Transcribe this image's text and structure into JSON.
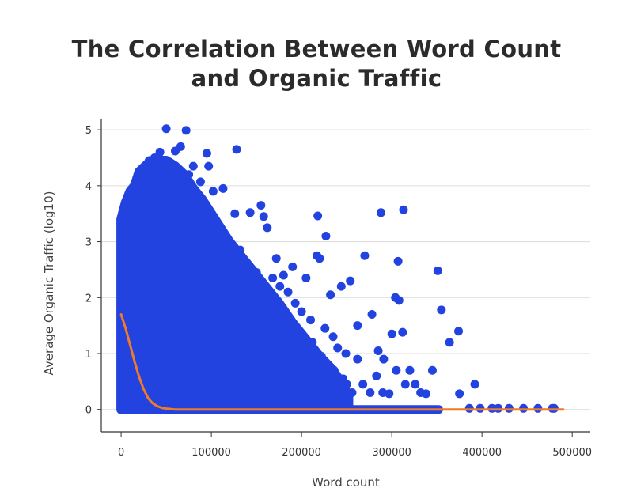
{
  "chart_data": {
    "type": "scatter",
    "title_lines": [
      "The Correlation Between Word Count",
      "and Organic Traffic"
    ],
    "xlabel": "Word count",
    "ylabel": "Average Organic Traffic (log10)",
    "xlim": [
      -22000,
      520000
    ],
    "ylim": [
      -0.4,
      5.2
    ],
    "xticks": [
      0,
      100000,
      200000,
      300000,
      400000,
      500000
    ],
    "yticks": [
      0,
      1,
      2,
      3,
      4,
      5
    ],
    "grid": "horizontal",
    "colors": {
      "points": "#2343e0",
      "trend": "#f07a26",
      "grid": "#dcdcdc",
      "axis": "#333333"
    },
    "series": [
      {
        "type": "scatter",
        "points": [
          [
            50000,
            5.02
          ],
          [
            72000,
            4.99
          ],
          [
            66000,
            4.7
          ],
          [
            60000,
            4.62
          ],
          [
            43000,
            4.6
          ],
          [
            37000,
            4.5
          ],
          [
            31000,
            4.45
          ],
          [
            80000,
            4.35
          ],
          [
            95000,
            4.58
          ],
          [
            97000,
            4.35
          ],
          [
            128000,
            4.65
          ],
          [
            75000,
            4.2
          ],
          [
            88000,
            4.07
          ],
          [
            102000,
            3.9
          ],
          [
            113000,
            3.95
          ],
          [
            82000,
            3.65
          ],
          [
            126000,
            3.5
          ],
          [
            143000,
            3.52
          ],
          [
            155000,
            3.65
          ],
          [
            158000,
            3.45
          ],
          [
            162000,
            3.25
          ],
          [
            218000,
            3.46
          ],
          [
            227000,
            3.1
          ],
          [
            217000,
            2.75
          ],
          [
            220000,
            2.7
          ],
          [
            270000,
            2.75
          ],
          [
            288000,
            3.52
          ],
          [
            313000,
            3.57
          ],
          [
            307000,
            2.65
          ],
          [
            351000,
            2.48
          ],
          [
            254000,
            2.3
          ],
          [
            244000,
            2.2
          ],
          [
            304000,
            2.0
          ],
          [
            308000,
            1.95
          ],
          [
            355000,
            1.78
          ],
          [
            374000,
            1.4
          ],
          [
            364000,
            1.2
          ],
          [
            312000,
            1.38
          ],
          [
            300000,
            1.35
          ],
          [
            278000,
            1.7
          ],
          [
            262000,
            1.5
          ],
          [
            249000,
            1.0
          ],
          [
            262000,
            0.9
          ],
          [
            291000,
            0.9
          ],
          [
            305000,
            0.7
          ],
          [
            345000,
            0.7
          ],
          [
            338000,
            0.28
          ],
          [
            315000,
            0.45
          ],
          [
            297000,
            0.28
          ],
          [
            392000,
            0.45
          ],
          [
            375000,
            0.28
          ],
          [
            386000,
            0.02
          ],
          [
            398000,
            0.02
          ],
          [
            411000,
            0.02
          ],
          [
            418000,
            0.02
          ],
          [
            430000,
            0.02
          ],
          [
            446000,
            0.02
          ],
          [
            462000,
            0.02
          ],
          [
            478000,
            0.02
          ],
          [
            480000,
            0.02
          ],
          [
            18000,
            3.67
          ],
          [
            20000,
            4.15
          ],
          [
            25000,
            4.3
          ],
          [
            34000,
            4.2
          ],
          [
            46000,
            4.4
          ],
          [
            56000,
            4.33
          ],
          [
            64000,
            4.25
          ],
          [
            40000,
            4.05
          ],
          [
            58000,
            3.95
          ],
          [
            70000,
            3.8
          ],
          [
            90000,
            3.55
          ],
          [
            108000,
            3.2
          ],
          [
            118000,
            3.05
          ],
          [
            132000,
            2.85
          ],
          [
            140000,
            2.6
          ],
          [
            150000,
            2.45
          ],
          [
            168000,
            2.35
          ],
          [
            176000,
            2.2
          ],
          [
            185000,
            2.1
          ],
          [
            193000,
            1.9
          ],
          [
            200000,
            1.75
          ],
          [
            210000,
            1.6
          ],
          [
            226000,
            1.45
          ],
          [
            235000,
            1.3
          ],
          [
            240000,
            1.1
          ],
          [
            190000,
            2.55
          ],
          [
            172000,
            2.7
          ],
          [
            180000,
            2.4
          ],
          [
            205000,
            2.35
          ],
          [
            232000,
            2.05
          ],
          [
            198000,
            1.4
          ],
          [
            212000,
            1.2
          ],
          [
            222000,
            0.95
          ],
          [
            236000,
            0.7
          ],
          [
            246000,
            0.55
          ],
          [
            256000,
            0.3
          ],
          [
            268000,
            0.45
          ],
          [
            283000,
            0.6
          ],
          [
            290000,
            0.3
          ],
          [
            326000,
            0.45
          ],
          [
            332000,
            0.3
          ],
          [
            320000,
            0.7
          ],
          [
            285000,
            1.05
          ],
          [
            276000,
            0.3
          ],
          [
            250000,
            0.45
          ],
          [
            145000,
            1.8
          ],
          [
            160000,
            1.55
          ],
          [
            170000,
            1.3
          ],
          [
            182000,
            1.05
          ],
          [
            196000,
            0.9
          ],
          [
            208000,
            0.75
          ],
          [
            214000,
            0.45
          ],
          [
            229000,
            0.3
          ],
          [
            203000,
            0.3
          ],
          [
            188000,
            0.55
          ]
        ]
      },
      {
        "type": "line",
        "points": [
          [
            0,
            1.7
          ],
          [
            5000,
            1.45
          ],
          [
            10000,
            1.15
          ],
          [
            15000,
            0.85
          ],
          [
            20000,
            0.58
          ],
          [
            25000,
            0.36
          ],
          [
            30000,
            0.2
          ],
          [
            35000,
            0.11
          ],
          [
            40000,
            0.06
          ],
          [
            45000,
            0.03
          ],
          [
            50000,
            0.015
          ],
          [
            60000,
            0.0
          ],
          [
            100000,
            0.0
          ],
          [
            200000,
            0.0
          ],
          [
            300000,
            0.0
          ],
          [
            400000,
            0.0
          ],
          [
            490000,
            0.0
          ]
        ]
      }
    ]
  }
}
